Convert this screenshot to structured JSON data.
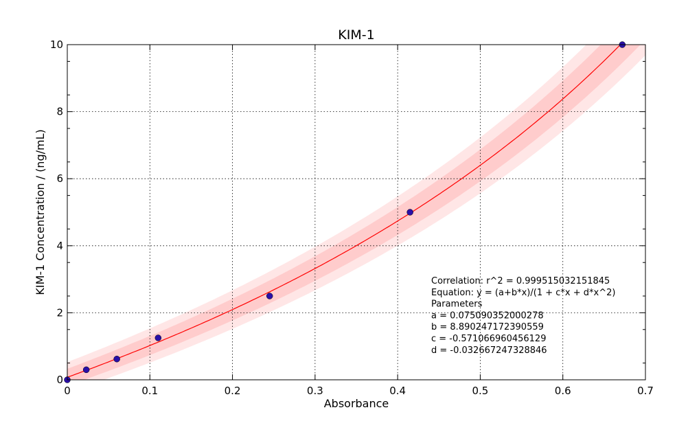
{
  "chart_data": {
    "type": "scatter",
    "title": "KIM-1",
    "xlabel": "Absorbance",
    "ylabel": "KIM-1 Concentration / (ng/mL)",
    "xlim": [
      0,
      0.7
    ],
    "ylim": [
      0,
      10
    ],
    "xticks": [
      "0",
      "0.1",
      "0.2",
      "0.3",
      "0.4",
      "0.5",
      "0.6",
      "0.7"
    ],
    "yticks": [
      "0",
      "2",
      "4",
      "6",
      "8",
      "10"
    ],
    "grid": true,
    "points": [
      {
        "x": 0.0,
        "y": 0.0
      },
      {
        "x": 0.023,
        "y": 0.3
      },
      {
        "x": 0.06,
        "y": 0.62
      },
      {
        "x": 0.11,
        "y": 1.25
      },
      {
        "x": 0.245,
        "y": 2.5
      },
      {
        "x": 0.415,
        "y": 5.0
      },
      {
        "x": 0.672,
        "y": 10.0
      }
    ],
    "fit": {
      "equation": "y = (a+b*x)/(1 + c*x + d*x^2)",
      "a": 0.075090352000278,
      "b": 8.89024717239056,
      "c": -0.571066960456129,
      "d": -0.032667247328846,
      "line_color": "#ff0000",
      "band_color": "#ffb6b6"
    },
    "marker_color": "#2a0fa8",
    "annotation": {
      "lines": [
        "Correlation: r^2 = 0.999515032151845",
        "Equation: y = (a+b*x)/(1 + c*x + d*x^2)",
        "Parameters",
        "a = 0.075090352000278",
        "b = 8.890247172390559",
        "c = -0.571066960456129",
        "d = -0.032667247328846"
      ]
    }
  }
}
